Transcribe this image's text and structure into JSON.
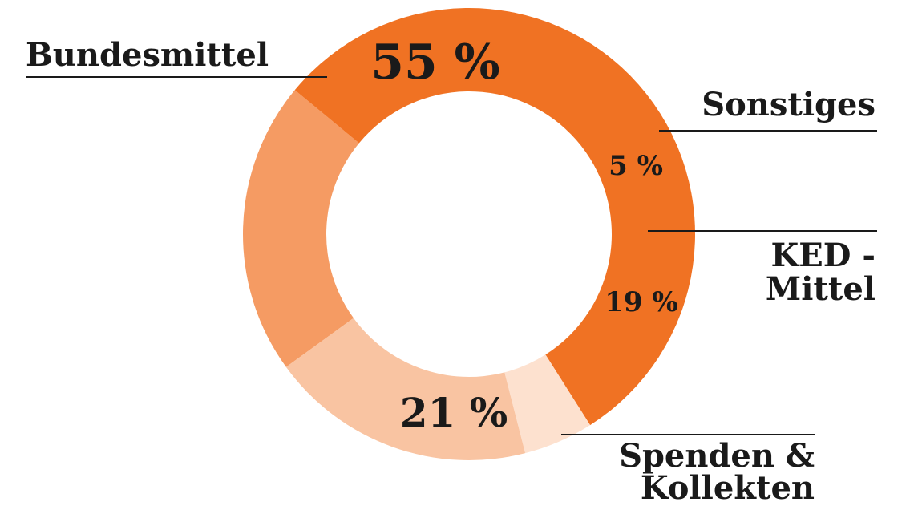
{
  "chart_data": {
    "type": "pie",
    "donut": true,
    "title": "",
    "slices": [
      {
        "label_lines": [
          "Bundesmittel"
        ],
        "value": 55,
        "value_label": "55 %",
        "color": "#f07223"
      },
      {
        "label_lines": [
          "Sonstiges"
        ],
        "value": 5,
        "value_label": "5 %",
        "color": "#fde1cf"
      },
      {
        "label_lines": [
          "KED -",
          "Mittel"
        ],
        "value": 19,
        "value_label": "19 %",
        "color": "#f9c4a2"
      },
      {
        "label_lines": [
          "Spenden &",
          "Kollekten"
        ],
        "value": 21,
        "value_label": "21 %",
        "color": "#f59b63"
      }
    ],
    "start_slice": "Spenden & Kollekten",
    "direction": "clockwise from bottom-left",
    "legend": "none"
  }
}
